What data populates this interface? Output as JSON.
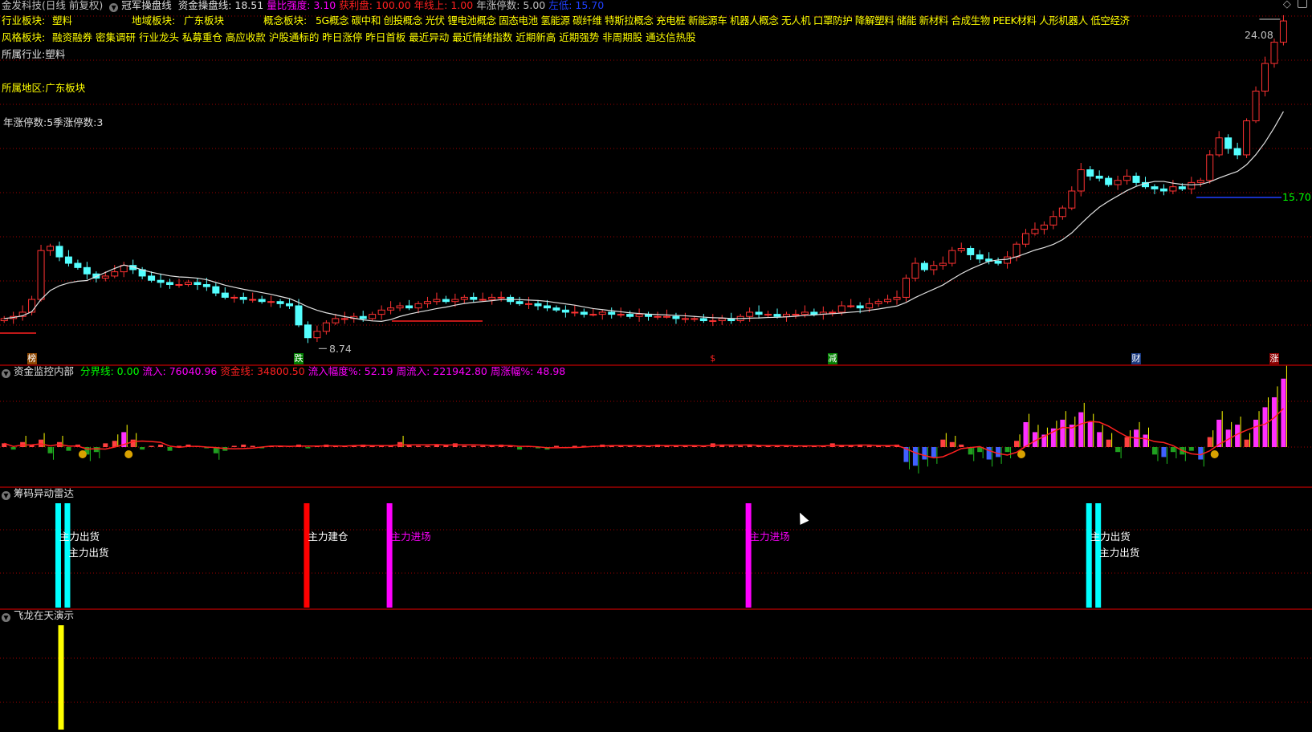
{
  "header": {
    "stock_name": "金发科技(日线 前复权)",
    "indicator_name": "冠军操盘线",
    "items": [
      {
        "label": "资金操盘线: 18.51",
        "color": "#e0e0e0"
      },
      {
        "label": "量比强度: 3.10",
        "color": "#ff00ff"
      },
      {
        "label": "获利盘: 100.00",
        "color": "#ff2020"
      },
      {
        "label": "年线上: 1.00",
        "color": "#ff2020"
      },
      {
        "label": "年涨停数: 5.00",
        "color": "#c0c0c0"
      },
      {
        "label": "左低: 15.70",
        "color": "#2040ff"
      }
    ]
  },
  "sectors": {
    "industry_label": "行业板块:",
    "industry_value": "塑料",
    "region_label": "地域板块:",
    "region_value": "广东板块",
    "concept_label": "概念板块:",
    "concepts": "5G概念 碳中和 创投概念 光伏 锂电池概念 固态电池 氢能源 碳纤维 特斯拉概念 充电桩 新能源车 机器人概念 无人机 口罩防护 降解塑料 储能 新材料 合成生物 PEEK材料 人形机器人 低空经济",
    "style_label": "风格板块:",
    "styles": "融资融券 密集调研 行业龙头 私募重仓 高应收款 沪股通标的 昨日涨停 昨日首板 最近异动 最近情绪指数 近期新高 近期强势 非周期股 通达信热股"
  },
  "info": {
    "industry": "所属行业:塑料",
    "region": "所属地区:广东板块",
    "limit_counts": "年涨停数:5季涨停数:3"
  },
  "price_labels": {
    "high": "24.08",
    "low": "8.74",
    "left_low": "15.70"
  },
  "signals": [
    {
      "text": "榜",
      "bg": "#8b4500",
      "index": 3
    },
    {
      "text": "跌",
      "bg": "#008000",
      "index": 32
    },
    {
      "text": "$",
      "bg": "transparent",
      "color": "#ff2020",
      "index": 77
    },
    {
      "text": "减",
      "bg": "#008000",
      "index": 90
    },
    {
      "text": "财",
      "bg": "#1a3a80",
      "index": 123
    },
    {
      "text": "涨",
      "bg": "#8b0000",
      "index": 138
    }
  ],
  "fund_panel": {
    "title": "资金监控内部",
    "items": [
      {
        "label": "分界线: 0.00",
        "color": "#00ff00"
      },
      {
        "label": "流入: 76040.96",
        "color": "#ff00ff"
      },
      {
        "label": "资金线: 34800.50",
        "color": "#ff2020"
      },
      {
        "label": "流入幅度%: 52.19",
        "color": "#ff00ff"
      },
      {
        "label": "周流入: 221942.80",
        "color": "#ff00ff"
      },
      {
        "label": "周涨幅%: 48.98",
        "color": "#ff00ff"
      }
    ]
  },
  "radar_panel": {
    "title": "筹码异动雷达",
    "events": [
      {
        "index": 6,
        "color": "#00ffff",
        "label": "主力出货",
        "label_color": "#ffffff"
      },
      {
        "index": 7,
        "color": "#00ffff",
        "label": "主力出货",
        "label_color": "#ffffff"
      },
      {
        "index": 33,
        "color": "#ff0000",
        "label": "主力建仓",
        "label_color": "#ffffff"
      },
      {
        "index": 42,
        "color": "#ff00ff",
        "label": "主力进场",
        "label_color": "#ff00ff"
      },
      {
        "index": 81,
        "color": "#ff00ff",
        "label": "主力进场",
        "label_color": "#ff00ff"
      },
      {
        "index": 118,
        "color": "#00ffff",
        "label": "主力出货",
        "label_color": "#ffffff"
      },
      {
        "index": 119,
        "color": "#00ffff",
        "label": "主力出货",
        "label_color": "#ffffff"
      }
    ]
  },
  "dragon_panel": {
    "title": "飞龙在天演示",
    "events": [
      {
        "index": 5,
        "color": "#ffff00"
      }
    ]
  },
  "chart_data": {
    "type": "candlestick",
    "price_range": [
      8.74,
      24.08
    ],
    "close": [
      10.0,
      10.1,
      10.3,
      10.9,
      13.2,
      13.4,
      12.9,
      12.6,
      12.4,
      12.1,
      11.9,
      12.0,
      12.2,
      12.5,
      12.3,
      12.0,
      11.8,
      11.7,
      11.6,
      11.6,
      11.7,
      11.6,
      11.5,
      11.2,
      11.0,
      11.0,
      10.9,
      10.9,
      10.8,
      10.8,
      10.7,
      10.6,
      9.7,
      9.1,
      9.4,
      9.8,
      10.0,
      10.0,
      10.1,
      10.0,
      10.2,
      10.4,
      10.5,
      10.6,
      10.5,
      10.7,
      10.8,
      10.9,
      10.8,
      10.9,
      11.0,
      10.9,
      10.9,
      11.0,
      11.0,
      10.8,
      10.7,
      10.7,
      10.6,
      10.5,
      10.4,
      10.3,
      10.3,
      10.2,
      10.2,
      10.3,
      10.2,
      10.2,
      10.1,
      10.2,
      10.1,
      10.1,
      10.1,
      10.0,
      10.0,
      10.0,
      9.9,
      9.9,
      10.0,
      9.9,
      10.1,
      10.3,
      10.2,
      10.2,
      10.1,
      10.2,
      10.2,
      10.3,
      10.2,
      10.3,
      10.3,
      10.6,
      10.6,
      10.5,
      10.7,
      10.8,
      10.9,
      11.0,
      11.9,
      12.6,
      12.3,
      12.5,
      12.6,
      13.2,
      13.3,
      13.0,
      12.8,
      12.7,
      12.6,
      12.9,
      13.5,
      14.0,
      14.2,
      14.4,
      14.8,
      15.2,
      16.0,
      17.0,
      16.7,
      16.6,
      16.3,
      16.5,
      16.7,
      16.4,
      16.2,
      16.1,
      16.0,
      16.2,
      16.1,
      16.4,
      16.5,
      17.7,
      18.5,
      18.0,
      17.7,
      19.3,
      20.7,
      22.0,
      23.0,
      24.0
    ],
    "fund_flow": [
      3,
      -2,
      4,
      2,
      6,
      -5,
      4,
      -3,
      2,
      -6,
      -4,
      3,
      5,
      12,
      6,
      -2,
      1,
      2,
      -3,
      1,
      2,
      1,
      -1,
      -5,
      -3,
      1,
      2,
      1,
      -1,
      1,
      1,
      1,
      2,
      -1,
      1,
      2,
      1,
      1,
      1,
      2,
      1,
      1,
      1,
      4,
      2,
      1,
      1,
      2,
      2,
      3,
      1,
      1,
      1,
      1,
      2,
      1,
      -2,
      1,
      -1,
      -2,
      1,
      -1,
      1,
      1,
      1,
      2,
      1,
      1,
      1,
      1,
      1,
      2,
      1,
      1,
      1,
      1,
      1,
      3,
      2,
      1,
      1,
      2,
      1,
      1,
      1,
      1,
      1,
      1,
      1,
      1,
      3,
      1,
      1,
      2,
      1,
      1,
      1,
      2,
      -12,
      -15,
      -10,
      -8,
      6,
      4,
      2,
      -6,
      -4,
      -10,
      -8,
      -4,
      5,
      20,
      12,
      10,
      15,
      22,
      18,
      28,
      20,
      12,
      6,
      -4,
      8,
      14,
      10,
      -6,
      -8,
      -4,
      -6,
      -3,
      -10,
      8,
      22,
      14,
      18,
      6,
      22,
      32,
      40,
      55
    ]
  }
}
